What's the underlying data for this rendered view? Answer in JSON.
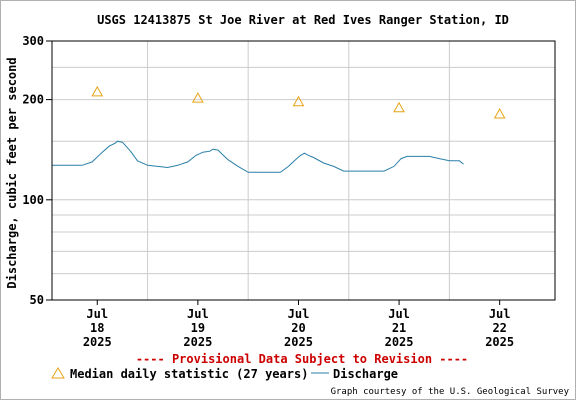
{
  "chart_data": {
    "type": "line",
    "title": "USGS 12413875 St Joe River at Red Ives Ranger Station, ID",
    "ylabel": "Discharge, cubic feet per second",
    "xlabel": "",
    "y_scale": "log",
    "ylim": [
      50,
      300
    ],
    "y_ticks": [
      {
        "value": 50,
        "label": "50"
      },
      {
        "value": 100,
        "label": "100"
      },
      {
        "value": 200,
        "label": "200"
      },
      {
        "value": 300,
        "label": "300"
      }
    ],
    "y_minor_gridlines": [
      60,
      70,
      80,
      90,
      150,
      250
    ],
    "xlim": [
      17.55,
      22.55
    ],
    "x_ticks": [
      {
        "value": 18,
        "label": [
          "Jul",
          "18",
          "2025"
        ]
      },
      {
        "value": 19,
        "label": [
          "Jul",
          "19",
          "2025"
        ]
      },
      {
        "value": 20,
        "label": [
          "Jul",
          "20",
          "2025"
        ]
      },
      {
        "value": 21,
        "label": [
          "Jul",
          "21",
          "2025"
        ]
      },
      {
        "value": 22,
        "label": [
          "Jul",
          "22",
          "2025"
        ]
      }
    ],
    "x_gridlines": [
      18.5,
      19.5,
      20.5,
      21.5
    ],
    "grid": true,
    "legend_position": "bottom",
    "series": [
      {
        "name": "Median daily statistic (27 years)",
        "marker": "triangle",
        "color": "#e8a317",
        "points": [
          [
            18,
            211
          ],
          [
            19,
            202
          ],
          [
            20,
            197
          ],
          [
            21,
            189
          ],
          [
            22,
            181
          ]
        ]
      },
      {
        "name": "Discharge",
        "color": "#2a7fa8",
        "points": [
          [
            17.55,
            127
          ],
          [
            17.7,
            127
          ],
          [
            17.85,
            127
          ],
          [
            17.95,
            130
          ],
          [
            18.05,
            139
          ],
          [
            18.12,
            145
          ],
          [
            18.18,
            148
          ],
          [
            18.2,
            150
          ],
          [
            18.25,
            149
          ],
          [
            18.33,
            140
          ],
          [
            18.4,
            131
          ],
          [
            18.5,
            127
          ],
          [
            18.6,
            126
          ],
          [
            18.7,
            125
          ],
          [
            18.8,
            127
          ],
          [
            18.9,
            130
          ],
          [
            18.98,
            136
          ],
          [
            19.05,
            139
          ],
          [
            19.12,
            140
          ],
          [
            19.15,
            142
          ],
          [
            19.2,
            141
          ],
          [
            19.3,
            132
          ],
          [
            19.4,
            126
          ],
          [
            19.5,
            121
          ],
          [
            19.6,
            121
          ],
          [
            19.7,
            121
          ],
          [
            19.82,
            121
          ],
          [
            19.9,
            126
          ],
          [
            19.97,
            132
          ],
          [
            20.02,
            136
          ],
          [
            20.06,
            138
          ],
          [
            20.1,
            136
          ],
          [
            20.15,
            134
          ],
          [
            20.25,
            129
          ],
          [
            20.35,
            126
          ],
          [
            20.45,
            122
          ],
          [
            20.6,
            122
          ],
          [
            20.75,
            122
          ],
          [
            20.85,
            122
          ],
          [
            20.95,
            126
          ],
          [
            21.02,
            133
          ],
          [
            21.08,
            135
          ],
          [
            21.2,
            135
          ],
          [
            21.3,
            135
          ],
          [
            21.4,
            133
          ],
          [
            21.5,
            131
          ],
          [
            21.6,
            131
          ],
          [
            21.64,
            128
          ]
        ]
      }
    ]
  },
  "notice": "---- Provisional Data Subject to Revision ----",
  "legend": {
    "median_label": "Median daily statistic (27 years)",
    "discharge_label": "Discharge"
  },
  "credit": "Graph courtesy of the U.S. Geological Survey",
  "colors": {
    "median": "#e8a317",
    "discharge": "#2a7fa8",
    "notice": "#cc0000",
    "grid": "#cccccc",
    "axis": "#000000"
  }
}
